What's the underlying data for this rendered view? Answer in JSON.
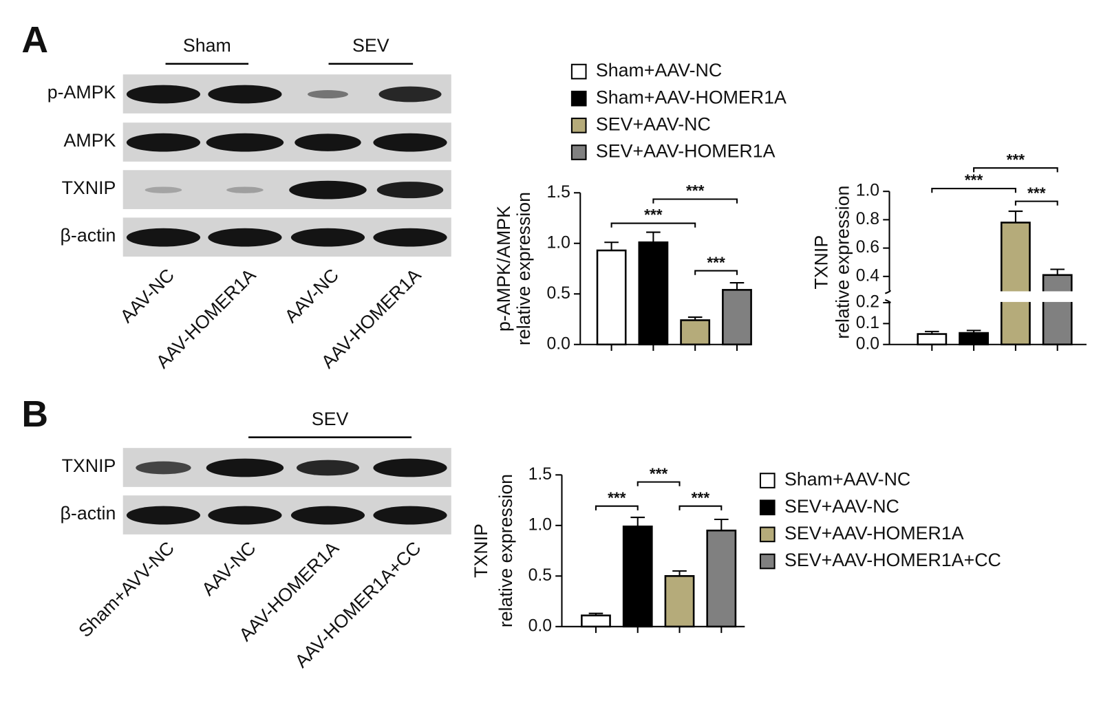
{
  "panels": [
    {
      "letter": "A",
      "groups": [
        "Sham",
        "SEV"
      ],
      "rows": [
        "p-AMPK",
        "AMPK",
        "TXNIP",
        "β-actin"
      ],
      "lanes": [
        "AAV-NC",
        "AAV-HOMER1A",
        "AAV-NC",
        "AAV-HOMER1A"
      ]
    },
    {
      "letter": "B",
      "groups": [
        "SEV"
      ],
      "rows": [
        "TXNIP",
        "β-actin"
      ],
      "lanes": [
        "Sham+AVV-NC",
        "AAV-NC",
        "AAV-HOMER1A",
        "AAV-HOMER1A+CC"
      ]
    }
  ],
  "chart_data": [
    {
      "type": "bar",
      "ylabel": [
        "p-AMPK/AMPK",
        "relative expression"
      ],
      "categories": [
        "Sham+AAV-NC",
        "Sham+AAV-HOMER1A",
        "SEV+AAV-NC",
        "SEV+AAV-HOMER1A"
      ],
      "colors": [
        "#ffffff",
        "#000000",
        "#b5ab7a",
        "#808080"
      ],
      "values": [
        0.93,
        1.01,
        0.24,
        0.54
      ],
      "errors": [
        0.08,
        0.1,
        0.03,
        0.07
      ],
      "ylim": [
        0,
        1.5
      ],
      "yticks": [
        {
          "value": 0,
          "label": "0.0"
        },
        0.5,
        {
          "value": 1,
          "label": "1.0"
        },
        1.5
      ],
      "significance": [
        "***",
        "***",
        "***"
      ]
    },
    {
      "type": "bar",
      "ylabel": [
        "TXNIP",
        "relative expression"
      ],
      "colors": [
        "#ffffff",
        "#000000",
        "#b5ab7a",
        "#808080"
      ],
      "values": [
        0.05,
        0.055,
        0.78,
        0.41
      ],
      "errors": [
        0.012,
        0.012,
        0.08,
        0.04
      ],
      "ylim": [
        0,
        1.0
      ],
      "ybreak": [
        0.2,
        0.3
      ],
      "yticks": [
        {
          "value": 0,
          "label": "0.0"
        },
        0.1,
        0.2,
        0.4,
        0.6,
        0.8,
        {
          "value": 1,
          "label": "1.0"
        }
      ],
      "significance": [
        "***",
        "***",
        "***"
      ]
    },
    {
      "type": "bar",
      "ylabel": [
        "TXNIP",
        "relative expression"
      ],
      "categories": [
        "Sham+AAV-NC",
        "SEV+AAV-NC",
        "SEV+AAV-HOMER1A",
        "SEV+AAV-HOMER1A+CC"
      ],
      "colors": [
        "#ffffff",
        "#000000",
        "#b5ab7a",
        "#808080"
      ],
      "values": [
        0.11,
        0.99,
        0.5,
        0.95
      ],
      "errors": [
        0.02,
        0.09,
        0.05,
        0.11
      ],
      "ylim": [
        0,
        1.5
      ],
      "yticks": [
        {
          "value": 0,
          "label": "0.0"
        },
        0.5,
        {
          "value": 1,
          "label": "1.0"
        },
        1.5
      ],
      "significance": [
        "***",
        "***",
        "***"
      ]
    }
  ]
}
